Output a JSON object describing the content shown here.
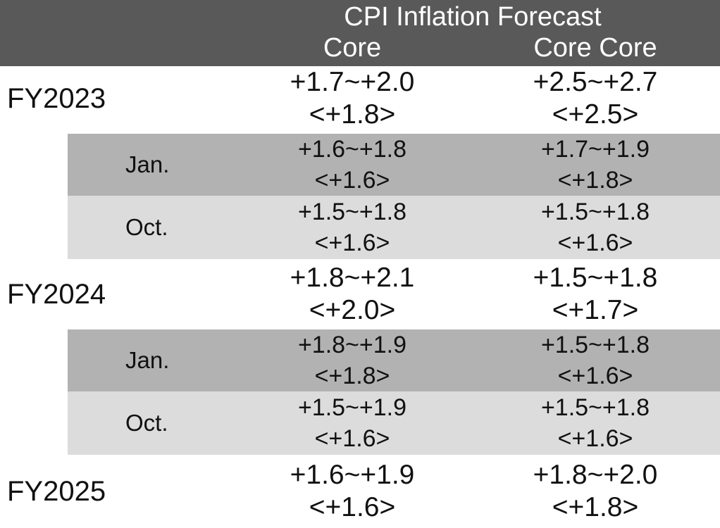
{
  "header": {
    "title": "CPI Inflation Forecast",
    "col1": "Core",
    "col2": "Core Core"
  },
  "rows": [
    {
      "label": "FY2023",
      "core": {
        "range": "+1.7~+2.0",
        "median": "<+1.8>"
      },
      "core_core": {
        "range": "+2.5~+2.7",
        "median": "<+2.5>"
      }
    },
    {
      "label": "Jan.",
      "core": {
        "range": "+1.6~+1.8",
        "median": "<+1.6>"
      },
      "core_core": {
        "range": "+1.7~+1.9",
        "median": "<+1.8>"
      }
    },
    {
      "label": "Oct.",
      "core": {
        "range": "+1.5~+1.8",
        "median": "<+1.6>"
      },
      "core_core": {
        "range": "+1.5~+1.8",
        "median": "<+1.6>"
      }
    },
    {
      "label": "FY2024",
      "core": {
        "range": "+1.8~+2.1",
        "median": "<+2.0>"
      },
      "core_core": {
        "range": "+1.5~+1.8",
        "median": "<+1.7>"
      }
    },
    {
      "label": "Jan.",
      "core": {
        "range": "+1.8~+1.9",
        "median": "<+1.8>"
      },
      "core_core": {
        "range": "+1.5~+1.8",
        "median": "<+1.6>"
      }
    },
    {
      "label": "Oct.",
      "core": {
        "range": "+1.5~+1.9",
        "median": "<+1.6>"
      },
      "core_core": {
        "range": "+1.5~+1.8",
        "median": "<+1.6>"
      }
    },
    {
      "label": "FY2025",
      "core": {
        "range": "+1.6~+1.9",
        "median": "<+1.6>"
      },
      "core_core": {
        "range": "+1.8~+2.0",
        "median": "<+1.8>"
      }
    }
  ]
}
